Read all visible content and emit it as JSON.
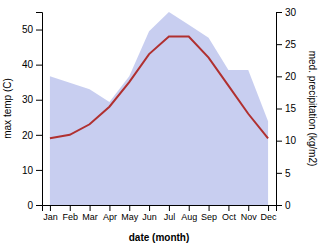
{
  "chart_data": {
    "type": "line",
    "categories": [
      "Jan",
      "Feb",
      "Mar",
      "Apr",
      "May",
      "Jun",
      "Jul",
      "Aug",
      "Sep",
      "Oct",
      "Nov",
      "Dec"
    ],
    "xlabel": "date (month)",
    "ylabel": "max temp (C)",
    "y2label": "med. precipitation (kg/m2)",
    "series": [
      {
        "type": "area",
        "color": "#aab4e8",
        "axis": "y2",
        "values": [
          20,
          19,
          18,
          16,
          20,
          27,
          30,
          28,
          26,
          21,
          21,
          13
        ]
      },
      {
        "type": "line",
        "color": "#b03030",
        "values": [
          19,
          20,
          23,
          28,
          35,
          43,
          48,
          48,
          42,
          34,
          26,
          19
        ]
      }
    ],
    "ylim": [
      0,
      55
    ],
    "yticks": [
      0,
      10,
      20,
      30,
      40,
      50
    ],
    "y2lim": [
      0,
      30
    ],
    "y2ticks": [
      0,
      5,
      10,
      15,
      20,
      25,
      30
    ],
    "grid": false
  }
}
